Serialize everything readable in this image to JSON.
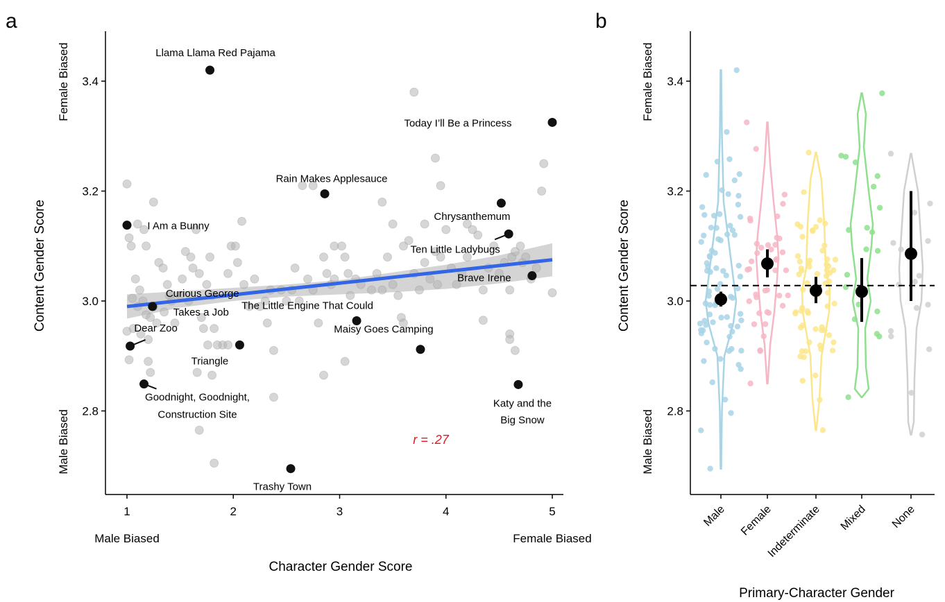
{
  "chart_data": [
    {
      "panel": "a",
      "type": "scatter",
      "xlabel": "Character Gender Score",
      "ylabel": "Content Gender Score",
      "x_end_labels": {
        "low": "Male Biased",
        "high": "Female Biased"
      },
      "y_end_labels": {
        "low": "Male Biased",
        "high": "Female Biased"
      },
      "xlim": [
        0.85,
        5.2
      ],
      "ylim": [
        2.64,
        3.49
      ],
      "x_ticks": [
        1,
        2,
        3,
        4,
        5
      ],
      "y_ticks": [
        2.8,
        3.0,
        3.2,
        3.4
      ],
      "x_tick_labels": [
        "1",
        "2",
        "3",
        "4",
        "5"
      ],
      "y_tick_labels": [
        "2.8",
        "3.0",
        "3.2",
        "3.4"
      ],
      "grid": false,
      "annotation_r": "r = .27",
      "trend_line": {
        "x": [
          1,
          5
        ],
        "y": [
          2.99,
          3.075
        ],
        "color": "#3366e6"
      },
      "confidence_band": {
        "x": [
          1,
          1.5,
          2,
          2.5,
          3,
          3.5,
          4,
          4.5,
          5
        ],
        "lower": [
          2.968,
          2.988,
          3.0,
          3.008,
          3.012,
          3.016,
          3.022,
          3.032,
          3.045
        ],
        "upper": [
          3.012,
          3.018,
          3.024,
          3.03,
          3.038,
          3.052,
          3.066,
          3.083,
          3.105
        ]
      },
      "highlighted_books": [
        {
          "title": "Llama Llama Red Pajama",
          "x": 1.78,
          "y": 3.42
        },
        {
          "title": "Today I’ll Be a Princess",
          "x": 5.0,
          "y": 3.325
        },
        {
          "title": "Rain Makes Applesauce",
          "x": 2.86,
          "y": 3.195
        },
        {
          "title": "Chrysanthemum",
          "x": 4.52,
          "y": 3.178
        },
        {
          "title": "I Am a Bunny",
          "x": 1.0,
          "y": 3.138
        },
        {
          "title": "Ten Little Ladybugs",
          "x": 4.59,
          "y": 3.122
        },
        {
          "title": "Brave Irene",
          "x": 4.81,
          "y": 3.046
        },
        {
          "title": "Curious George",
          "x": 1.24,
          "y": 2.99
        },
        {
          "title": "Takes a Job",
          "x": 1.24,
          "y": 2.99
        },
        {
          "title": "The Little Engine That Could",
          "x": 3.16,
          "y": 2.964
        },
        {
          "title": "Dear Zoo",
          "x": 1.03,
          "y": 2.918
        },
        {
          "title": "Triangle",
          "x": 2.06,
          "y": 2.92
        },
        {
          "title": "Maisy Goes Camping",
          "x": 3.76,
          "y": 2.912
        },
        {
          "title": "Goodnight, Goodnight,",
          "x": 1.16,
          "y": 2.849
        },
        {
          "title": "Construction Site",
          "x": 1.16,
          "y": 2.849
        },
        {
          "title": "Katy and the",
          "x": 4.68,
          "y": 2.848
        },
        {
          "title": "Big Snow",
          "x": 4.68,
          "y": 2.848
        },
        {
          "title": "Trashy Town",
          "x": 2.54,
          "y": 2.695
        }
      ],
      "gray_points": [
        [
          1.0,
          3.213
        ],
        [
          1.02,
          3.115
        ],
        [
          1.04,
          3.1
        ],
        [
          1.08,
          3.04
        ],
        [
          1.12,
          3.02
        ],
        [
          1.05,
          3.005
        ],
        [
          1.1,
          2.99
        ],
        [
          1.15,
          3.0
        ],
        [
          1.18,
          2.975
        ],
        [
          1.22,
          2.97
        ],
        [
          1.0,
          2.945
        ],
        [
          1.06,
          2.95
        ],
        [
          1.13,
          2.94
        ],
        [
          1.2,
          2.93
        ],
        [
          1.02,
          2.893
        ],
        [
          1.2,
          2.89
        ],
        [
          1.22,
          2.87
        ],
        [
          1.25,
          2.99
        ],
        [
          1.28,
          2.96
        ],
        [
          1.1,
          3.14
        ],
        [
          1.16,
          3.13
        ],
        [
          1.18,
          3.1
        ],
        [
          1.25,
          3.18
        ],
        [
          1.3,
          3.07
        ],
        [
          1.34,
          3.06
        ],
        [
          1.38,
          3.03
        ],
        [
          1.4,
          3.01
        ],
        [
          1.42,
          3.0
        ],
        [
          1.35,
          2.98
        ],
        [
          1.45,
          2.96
        ],
        [
          1.5,
          3.01
        ],
        [
          1.52,
          3.04
        ],
        [
          1.55,
          3.09
        ],
        [
          1.6,
          3.08
        ],
        [
          1.62,
          3.06
        ],
        [
          1.58,
          3.0
        ],
        [
          1.65,
          3.13
        ],
        [
          1.68,
          3.05
        ],
        [
          1.7,
          2.97
        ],
        [
          1.72,
          2.95
        ],
        [
          1.75,
          3.03
        ],
        [
          1.78,
          3.08
        ],
        [
          1.8,
          3.01
        ],
        [
          1.82,
          2.95
        ],
        [
          1.76,
          2.92
        ],
        [
          1.66,
          2.87
        ],
        [
          1.68,
          2.765
        ],
        [
          1.82,
          2.705
        ],
        [
          1.9,
          2.92
        ],
        [
          1.95,
          3.05
        ],
        [
          1.98,
          3.1
        ],
        [
          2.02,
          3.1
        ],
        [
          2.04,
          3.07
        ],
        [
          2.08,
          3.145
        ],
        [
          2.1,
          3.03
        ],
        [
          2.15,
          2.99
        ],
        [
          2.2,
          3.04
        ],
        [
          2.25,
          2.99
        ],
        [
          2.3,
          3.0
        ],
        [
          2.32,
          2.96
        ],
        [
          2.35,
          3.02
        ],
        [
          2.38,
          2.91
        ],
        [
          2.38,
          2.825
        ],
        [
          2.45,
          3.02
        ],
        [
          2.5,
          3.0
        ],
        [
          2.55,
          3.02
        ],
        [
          2.58,
          3.06
        ],
        [
          2.62,
          3.0
        ],
        [
          2.7,
          3.04
        ],
        [
          2.75,
          3.02
        ],
        [
          2.8,
          2.96
        ],
        [
          2.85,
          3.08
        ],
        [
          2.88,
          3.05
        ],
        [
          2.92,
          3.03
        ],
        [
          2.95,
          3.04
        ],
        [
          2.65,
          3.21
        ],
        [
          2.75,
          3.21
        ],
        [
          2.95,
          3.1
        ],
        [
          3.02,
          3.1
        ],
        [
          3.05,
          3.08
        ],
        [
          3.08,
          3.05
        ],
        [
          3.1,
          3.01
        ],
        [
          3.15,
          3.04
        ],
        [
          3.2,
          3.03
        ],
        [
          3.3,
          3.02
        ],
        [
          3.35,
          3.05
        ],
        [
          3.4,
          3.02
        ],
        [
          3.45,
          3.08
        ],
        [
          3.5,
          3.03
        ],
        [
          3.55,
          3.01
        ],
        [
          3.6,
          3.1
        ],
        [
          3.65,
          3.11
        ],
        [
          3.7,
          3.05
        ],
        [
          3.75,
          3.02
        ],
        [
          3.8,
          3.07
        ],
        [
          3.85,
          3.04
        ],
        [
          3.9,
          3.09
        ],
        [
          3.92,
          3.03
        ],
        [
          3.95,
          3.08
        ],
        [
          4.0,
          3.13
        ],
        [
          4.05,
          3.06
        ],
        [
          4.1,
          3.03
        ],
        [
          4.15,
          3.05
        ],
        [
          4.2,
          3.08
        ],
        [
          4.3,
          3.12
        ],
        [
          4.35,
          3.02
        ],
        [
          4.4,
          3.06
        ],
        [
          4.45,
          3.1
        ],
        [
          4.5,
          3.05
        ],
        [
          4.55,
          3.07
        ],
        [
          4.6,
          3.02
        ],
        [
          4.62,
          3.08
        ],
        [
          4.65,
          3.09
        ],
        [
          4.7,
          3.1
        ],
        [
          4.72,
          3.07
        ],
        [
          4.75,
          3.08
        ],
        [
          4.8,
          3.04
        ],
        [
          4.85,
          3.06
        ],
        [
          4.9,
          3.2
        ],
        [
          4.92,
          3.25
        ],
        [
          5.0,
          3.015
        ],
        [
          3.7,
          3.38
        ],
        [
          3.9,
          3.26
        ],
        [
          3.95,
          3.21
        ],
        [
          3.4,
          3.18
        ],
        [
          3.5,
          3.14
        ],
        [
          4.2,
          3.14
        ],
        [
          4.25,
          3.13
        ],
        [
          3.8,
          3.14
        ],
        [
          2.85,
          2.865
        ],
        [
          3.05,
          2.89
        ],
        [
          4.35,
          2.965
        ],
        [
          4.6,
          2.94
        ],
        [
          4.6,
          2.93
        ],
        [
          4.65,
          2.91
        ],
        [
          3.58,
          2.97
        ],
        [
          3.6,
          2.96
        ],
        [
          1.95,
          2.92
        ],
        [
          1.8,
          2.865
        ],
        [
          1.85,
          2.92
        ]
      ]
    },
    {
      "panel": "b",
      "type": "violin",
      "xlabel": "Primary-Character Gender",
      "ylabel": "Content Gender Score",
      "y_end_labels": {
        "low": "Male Biased",
        "high": "Female Biased"
      },
      "ylim": [
        2.64,
        3.49
      ],
      "y_ticks": [
        2.8,
        3.0,
        3.2,
        3.4
      ],
      "y_tick_labels": [
        "2.8",
        "3.0",
        "3.2",
        "3.4"
      ],
      "reference_line": 3.028,
      "categories": [
        "Male",
        "Female",
        "Indeterminate",
        "Mixed",
        "None"
      ],
      "colors": [
        "#a8d4e6",
        "#f7b6c6",
        "#fbe68c",
        "#8ee08e",
        "#d0d0d0"
      ],
      "means": [
        3.003,
        3.068,
        3.019,
        3.017,
        3.086
      ],
      "ci_low": [
        2.99,
        3.043,
        2.996,
        2.962,
        3.0
      ],
      "ci_high": [
        3.017,
        3.094,
        3.044,
        3.078,
        3.2
      ],
      "ranges": [
        [
          2.695,
          3.42
        ],
        [
          2.85,
          3.325
        ],
        [
          2.765,
          3.27
        ],
        [
          2.825,
          3.378
        ],
        [
          2.757,
          3.268
        ]
      ]
    }
  ]
}
